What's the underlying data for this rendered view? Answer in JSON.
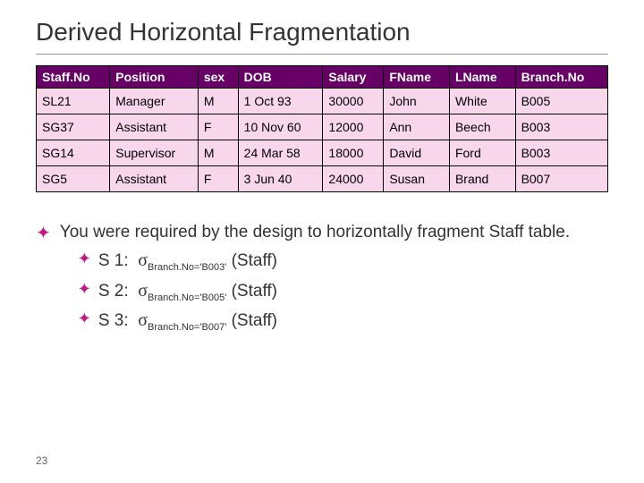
{
  "title": "Derived Horizontal Fragmentation",
  "table": {
    "columns": [
      "Staff.No",
      "Position",
      "sex",
      "DOB",
      "Salary",
      "FName",
      "LName",
      "Branch.No"
    ],
    "rows": [
      [
        "SL21",
        "Manager",
        "M",
        "1 Oct 93",
        "30000",
        "John",
        "White",
        "B005"
      ],
      [
        "SG37",
        "Assistant",
        "F",
        "10 Nov 60",
        "12000",
        "Ann",
        "Beech",
        "B003"
      ],
      [
        "SG14",
        "Supervisor",
        "M",
        "24 Mar 58",
        "18000",
        "David",
        "Ford",
        "B003"
      ],
      [
        "SG5",
        "Assistant",
        "F",
        "3 Jun 40",
        "24000",
        "Susan",
        "Brand",
        "B007"
      ]
    ],
    "header_bg": "#660066",
    "header_color": "#ffffff",
    "cell_bg": "#f8d7ed",
    "border_color": "#000000"
  },
  "body_text": "You were required by the design to horizontally fragment Staff table.",
  "fragments": [
    {
      "label": "S 1:",
      "cond": "Branch.No='B003'",
      "rel": "(Staff)"
    },
    {
      "label": "S 2:",
      "cond": "Branch.No='B005'",
      "rel": "(Staff)"
    },
    {
      "label": "S 3:",
      "cond": "Branch.No='B007'",
      "rel": "(Staff)"
    }
  ],
  "page_number": "23",
  "colors": {
    "bullet": "#c71585",
    "title": "#333333",
    "text": "#333333"
  }
}
